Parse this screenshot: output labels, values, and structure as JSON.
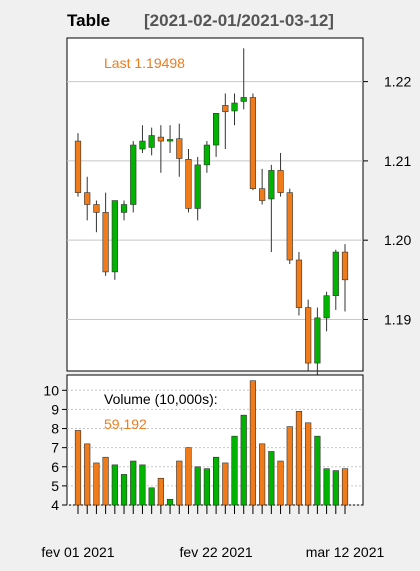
{
  "header": {
    "title": "Table",
    "range": "[2021-02-01/2021-03-12]"
  },
  "colors": {
    "background": "#f0f0f0",
    "panel": "#ffffff",
    "up": "#00b300",
    "down": "#f07b1a",
    "grid": "#c8c8c8",
    "header_range": "#555555"
  },
  "chart_data": [
    {
      "type": "candlestick",
      "panel": "price",
      "annotation": {
        "label": "Last",
        "value": "1.19498"
      },
      "ylim": [
        1.1835,
        1.2255
      ],
      "yticks": [
        "1.22",
        "1.21",
        "1.20",
        "1.19"
      ],
      "ytick_values": [
        1.22,
        1.21,
        1.2,
        1.19
      ],
      "grid": true,
      "dates": [
        "2021-02-01",
        "2021-02-02",
        "2021-02-03",
        "2021-02-04",
        "2021-02-05",
        "2021-02-08",
        "2021-02-09",
        "2021-02-10",
        "2021-02-11",
        "2021-02-12",
        "2021-02-15",
        "2021-02-16",
        "2021-02-17",
        "2021-02-18",
        "2021-02-19",
        "2021-02-22",
        "2021-02-23",
        "2021-02-24",
        "2021-02-25",
        "2021-02-26",
        "2021-03-01",
        "2021-03-02",
        "2021-03-03",
        "2021-03-04",
        "2021-03-05",
        "2021-03-08",
        "2021-03-09",
        "2021-03-10",
        "2021-03-11",
        "2021-03-12"
      ],
      "ohlc": [
        [
          1.2125,
          1.2135,
          1.2055,
          1.206
        ],
        [
          1.206,
          1.208,
          1.2025,
          1.2045
        ],
        [
          1.2045,
          1.205,
          1.201,
          1.2035
        ],
        [
          1.2035,
          1.206,
          1.1955,
          1.196
        ],
        [
          1.196,
          1.205,
          1.195,
          1.205
        ],
        [
          1.2035,
          1.205,
          1.2025,
          1.2045
        ],
        [
          1.2045,
          1.2125,
          1.2035,
          1.212
        ],
        [
          1.2115,
          1.2145,
          1.211,
          1.2125
        ],
        [
          1.2117,
          1.2142,
          1.2107,
          1.2132
        ],
        [
          1.213,
          1.2145,
          1.2085,
          1.2125
        ],
        [
          1.2125,
          1.2145,
          1.211,
          1.2127
        ],
        [
          1.2128,
          1.2147,
          1.208,
          1.2103
        ],
        [
          1.2102,
          1.2115,
          1.2035,
          1.204
        ],
        [
          1.204,
          1.2105,
          1.2025,
          1.2095
        ],
        [
          1.2095,
          1.2125,
          1.2085,
          1.212
        ],
        [
          1.212,
          1.216,
          1.2105,
          1.216
        ],
        [
          1.217,
          1.2185,
          1.2115,
          1.2162
        ],
        [
          1.2163,
          1.2185,
          1.2145,
          1.2173
        ],
        [
          1.2175,
          1.2242,
          1.2165,
          1.218
        ],
        [
          1.218,
          1.2185,
          1.2063,
          1.2065
        ],
        [
          1.2065,
          1.209,
          1.2045,
          1.205
        ],
        [
          1.2052,
          1.2095,
          1.1985,
          1.2088
        ],
        [
          1.2088,
          1.211,
          1.2055,
          1.206
        ],
        [
          1.206,
          1.2065,
          1.197,
          1.1975
        ],
        [
          1.1975,
          1.1985,
          1.1905,
          1.1915
        ],
        [
          1.1915,
          1.1925,
          1.1835,
          1.1845
        ],
        [
          1.1845,
          1.1915,
          1.1825,
          1.1902
        ],
        [
          1.1902,
          1.1935,
          1.1885,
          1.193
        ],
        [
          1.193,
          1.1988,
          1.1912,
          1.1985
        ],
        [
          1.1985,
          1.1995,
          1.191,
          1.195
        ]
      ]
    },
    {
      "type": "bar",
      "panel": "volume",
      "annotation": {
        "label": "Volume (10,000s):",
        "value": "59,192"
      },
      "ylim": [
        4,
        10.8
      ],
      "yticks": [
        "10",
        "9",
        "8",
        "7",
        "6",
        "5",
        "4"
      ],
      "ytick_values": [
        10,
        9,
        8,
        7,
        6,
        5,
        4
      ],
      "grid": true,
      "values": [
        7.9,
        7.2,
        6.2,
        6.5,
        6.1,
        5.6,
        6.3,
        6.1,
        4.9,
        5.4,
        4.3,
        6.3,
        7.0,
        6.0,
        5.9,
        6.5,
        6.2,
        7.6,
        8.7,
        10.5,
        7.2,
        6.8,
        6.3,
        8.1,
        8.9,
        8.3,
        7.6,
        5.9,
        5.8,
        5.9
      ]
    }
  ],
  "xaxis": {
    "labels": [
      {
        "text": "fev 01 2021",
        "index": 0
      },
      {
        "text": "fev 22 2021",
        "index": 15
      },
      {
        "text": "mar 12 2021",
        "index": 29
      }
    ]
  }
}
